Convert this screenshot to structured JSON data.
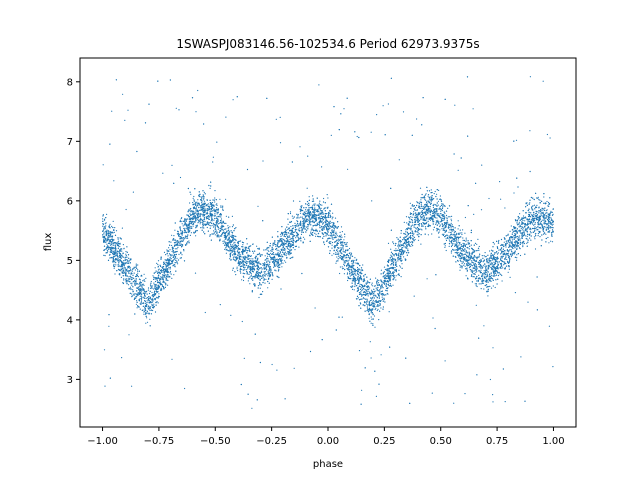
{
  "chart_data": {
    "type": "scatter",
    "title": "1SWASPJ083146.56-102534.6 Period 62973.9375s",
    "xlabel": "phase",
    "ylabel": "flux",
    "xlim": [
      -1.1,
      1.1
    ],
    "ylim": [
      2.2,
      8.4
    ],
    "x_ticks": [
      -1.0,
      -0.75,
      -0.5,
      -0.25,
      0.0,
      0.25,
      0.5,
      0.75,
      1.0
    ],
    "x_tick_labels": [
      "−1.00",
      "−0.75",
      "−0.50",
      "−0.25",
      "0.00",
      "0.25",
      "0.50",
      "0.75",
      "1.00"
    ],
    "y_ticks": [
      3,
      4,
      5,
      6,
      7,
      8
    ],
    "y_tick_labels": [
      "3",
      "4",
      "5",
      "6",
      "7",
      "8"
    ],
    "grid": false,
    "marker_color": "#1f77b4",
    "series": [
      {
        "trend_x": [
          -1.0,
          -0.9,
          -0.8,
          -0.7,
          -0.6,
          -0.55,
          -0.5,
          -0.4,
          -0.3,
          -0.2,
          -0.1,
          -0.05,
          0.0,
          0.1,
          0.2,
          0.3,
          0.4,
          0.45,
          0.5,
          0.6,
          0.7,
          0.8,
          0.9,
          1.0
        ],
        "trend_y": [
          5.5,
          4.9,
          4.25,
          5.0,
          5.75,
          5.85,
          5.75,
          5.1,
          4.8,
          5.2,
          5.7,
          5.75,
          5.6,
          4.9,
          4.25,
          5.0,
          5.75,
          5.85,
          5.75,
          5.1,
          4.8,
          5.2,
          5.7,
          5.65
        ],
        "scatter_band": 0.3,
        "outlier_range": [
          2.5,
          8.1
        ]
      }
    ]
  }
}
